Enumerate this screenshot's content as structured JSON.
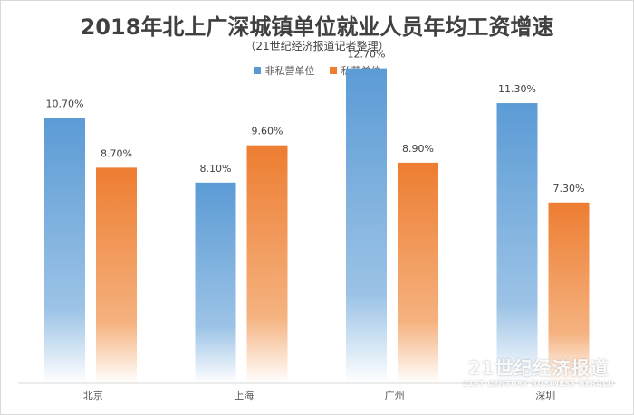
{
  "chart_data": {
    "type": "bar",
    "title": "2018年北上广深城镇单位就业人员年均工资增速",
    "subtitle": "（21世纪经济报道记者整理）",
    "categories": [
      "北京",
      "上海",
      "广州",
      "深圳"
    ],
    "series": [
      {
        "name": "非私营单位",
        "values": [
          10.7,
          8.1,
          12.7,
          11.3
        ],
        "labels": [
          "10.70%",
          "8.10%",
          "12.70%",
          "11.30%"
        ],
        "color": "#5b9bd5"
      },
      {
        "name": "私营单位",
        "values": [
          8.7,
          9.6,
          8.9,
          7.3
        ],
        "labels": [
          "8.70%",
          "9.60%",
          "8.90%",
          "7.30%"
        ],
        "color": "#ed7d31"
      }
    ],
    "ylim": [
      0,
      14
    ],
    "grid": false,
    "legend": "top"
  },
  "watermark": {
    "cn": "21世纪经济报道",
    "en": "21ST CENTURY BUSINESS HERALD"
  }
}
